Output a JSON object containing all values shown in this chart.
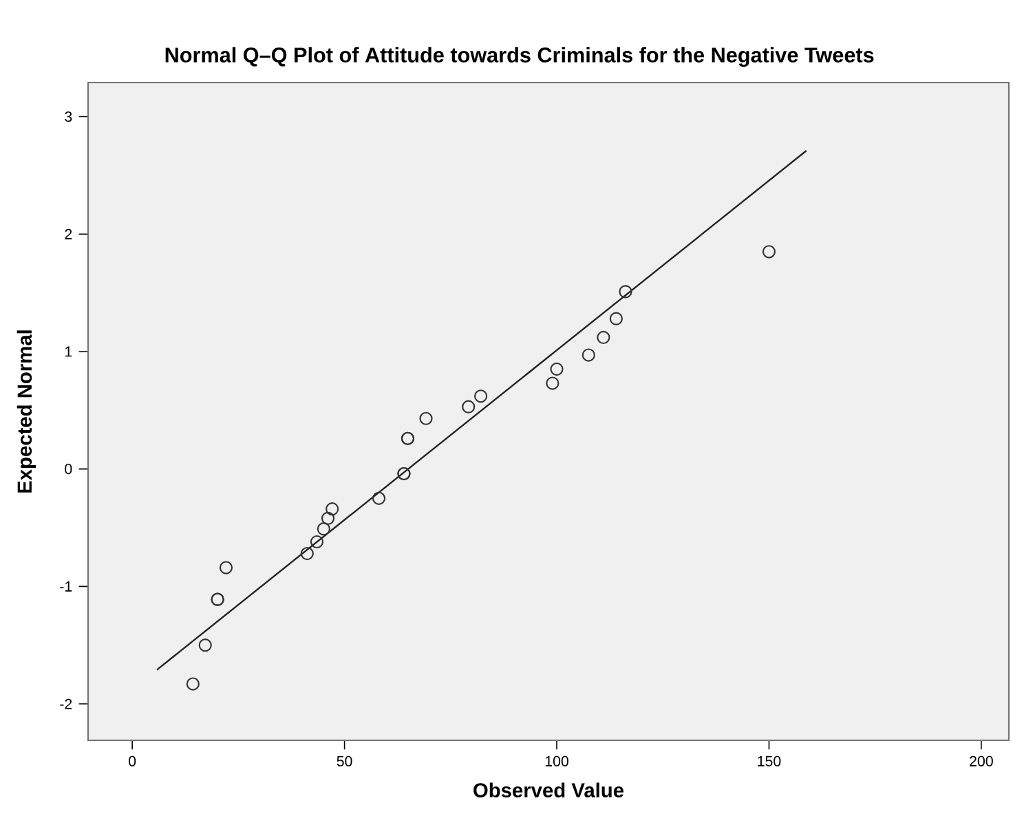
{
  "chart_data": {
    "type": "scatter",
    "title": "Normal Q–Q Plot of Attitude towards Criminals for the Negative Tweets",
    "xlabel": "Observed Value",
    "ylabel": "Expected Normal",
    "xlim": [
      -10.4,
      206.5
    ],
    "ylim": [
      -2.31,
      3.29
    ],
    "xticks": [
      0,
      50,
      100,
      150,
      200
    ],
    "yticks": [
      -2,
      -1,
      0,
      1,
      2,
      3
    ],
    "grid": false,
    "series": [
      {
        "color": "#333333",
        "marker": "circle",
        "x": [
          14.3,
          17.2,
          20.1,
          20.1,
          22.1,
          41.2,
          43.5,
          45.1,
          46.1,
          47.1,
          58.1,
          64,
          64,
          64.9,
          64.9,
          69.2,
          79.2,
          82.1,
          99,
          100,
          107.5,
          111,
          114,
          116.2,
          150
        ],
        "values": [
          -1.83,
          -1.5,
          -1.11,
          -1.11,
          -0.84,
          -0.72,
          -0.62,
          -0.51,
          -0.42,
          -0.34,
          -0.25,
          -0.04,
          -0.04,
          0.26,
          0.26,
          0.43,
          0.53,
          0.62,
          0.73,
          0.85,
          0.97,
          1.12,
          1.28,
          1.51,
          1.85
        ]
      },
      {
        "type": "line",
        "marker": "none",
        "color": "#222222",
        "x": [
          5.8,
          158.8
        ],
        "values": [
          -1.71,
          2.71
        ]
      }
    ]
  }
}
